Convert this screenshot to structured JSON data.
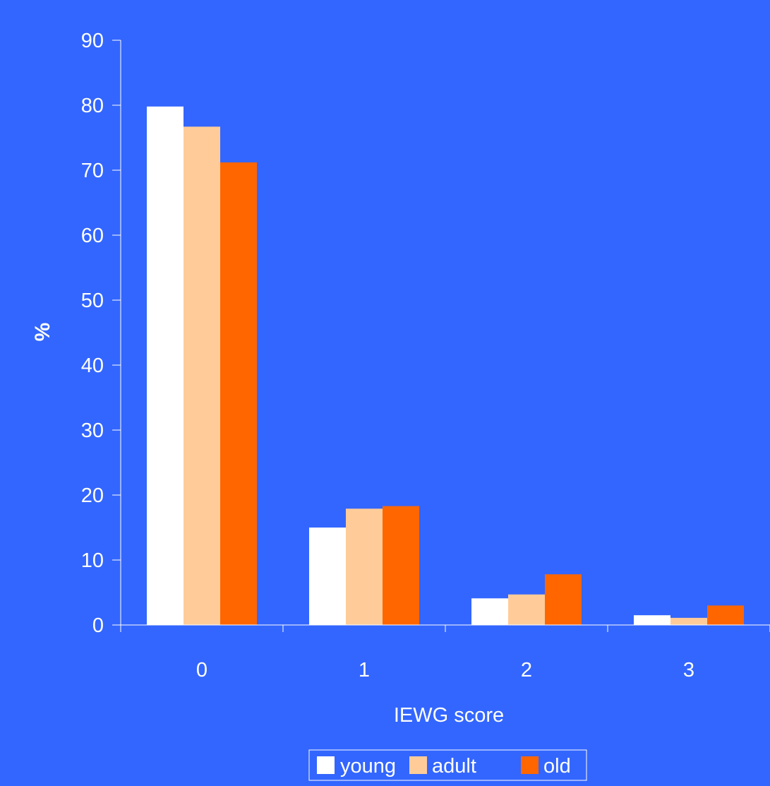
{
  "chart_data": {
    "type": "bar",
    "title": "",
    "xlabel": "IEWG score",
    "ylabel": "%",
    "categories": [
      "0",
      "1",
      "2",
      "3"
    ],
    "series": [
      {
        "name": "young",
        "color": "#ffffff",
        "values": [
          79.8,
          15.0,
          4.1,
          1.5
        ]
      },
      {
        "name": "adult",
        "color": "#ffcc99",
        "values": [
          76.7,
          17.9,
          4.7,
          1.1
        ]
      },
      {
        "name": "old",
        "color": "#ff6600",
        "values": [
          71.2,
          18.3,
          7.8,
          3.0
        ]
      }
    ],
    "ylim": [
      0,
      90
    ],
    "yticks": [
      0,
      10,
      20,
      30,
      40,
      50,
      60,
      70,
      80,
      90
    ],
    "grid": false,
    "legend_position": "bottom-center"
  }
}
